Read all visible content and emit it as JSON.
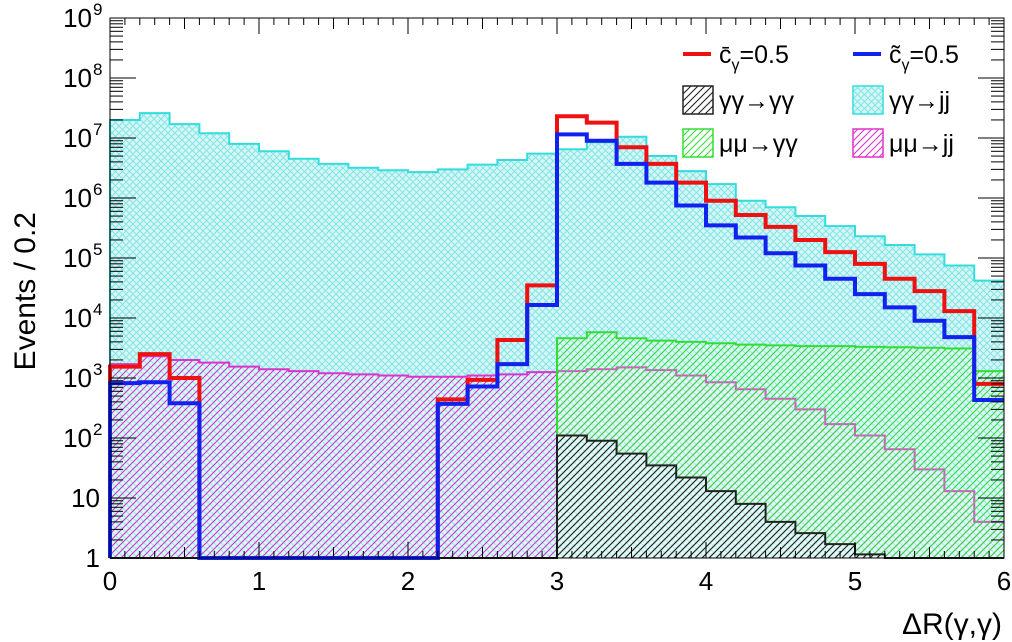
{
  "chart_data": {
    "type": "histogram",
    "xlabel": "ΔR(γ,γ)",
    "ylabel": "Events / 0.2",
    "xlim": [
      0,
      6
    ],
    "ylim": [
      1,
      1000000000
    ],
    "yscale": "log",
    "bin_width": 0.2,
    "legend_position": "top-right",
    "x_ticks": [
      "0",
      "1",
      "2",
      "3",
      "4",
      "5",
      "6"
    ],
    "y_ticks": [
      {
        "value": 1,
        "label": "1"
      },
      {
        "value": 10,
        "label": "10"
      },
      {
        "value": 100,
        "label": "10",
        "sup": "2"
      },
      {
        "value": 1000,
        "label": "10",
        "sup": "3"
      },
      {
        "value": 10000,
        "label": "10",
        "sup": "4"
      },
      {
        "value": 100000,
        "label": "10",
        "sup": "5"
      },
      {
        "value": 1000000,
        "label": "10",
        "sup": "6"
      },
      {
        "value": 10000000,
        "label": "10",
        "sup": "7"
      },
      {
        "value": 100000000,
        "label": "10",
        "sup": "8"
      },
      {
        "value": 1000000000,
        "label": "10",
        "sup": "9"
      }
    ],
    "series": [
      {
        "name": "γγ→jj",
        "key": "yyjj",
        "style": "fill",
        "color": "#33dddd",
        "values": [
          20000000,
          26000000,
          17000000,
          12000000,
          8000000,
          6000000,
          4500000,
          3700000,
          3200000,
          2900000,
          2700000,
          3000000,
          3600000,
          4300000,
          5500000,
          6500000,
          8500000,
          10500000,
          5000000,
          2800000,
          1700000,
          900000,
          700000,
          500000,
          340000,
          230000,
          165000,
          115000,
          75000,
          42000
        ]
      },
      {
        "name": "μμ→jj",
        "key": "mmjj",
        "style": "hatch",
        "color": "#dd33cc",
        "values": [
          1700,
          2300,
          2000,
          1800,
          1550,
          1400,
          1300,
          1200,
          1150,
          1100,
          1050,
          1050,
          1100,
          1150,
          1250,
          1300,
          1400,
          1500,
          1350,
          1100,
          850,
          650,
          450,
          300,
          170,
          110,
          65,
          30,
          13,
          4
        ]
      },
      {
        "name": "μμ→γγ",
        "key": "mmyy",
        "style": "hatch",
        "color": "#33dd33",
        "values": [
          1,
          1,
          1,
          1,
          1,
          1,
          1,
          1,
          1,
          1,
          1,
          1,
          1,
          1,
          1,
          4600,
          5800,
          4600,
          4200,
          4000,
          3800,
          3600,
          3500,
          3400,
          3400,
          3300,
          3250,
          3200,
          3100,
          1300
        ]
      },
      {
        "name": "γγ→γγ",
        "key": "yyyy",
        "style": "hatch",
        "color": "#222222",
        "values": [
          1,
          1,
          1,
          1,
          1,
          1,
          1,
          1,
          1,
          1,
          1,
          1,
          1,
          1,
          1,
          110,
          90,
          55,
          35,
          22,
          13,
          8,
          4,
          2.6,
          1.7,
          1.15,
          1,
          1,
          1,
          1
        ]
      },
      {
        "name": "c̄γ=0.5",
        "key": "cbar",
        "style": "line",
        "color": "#ee1111",
        "values": [
          1550,
          2500,
          1000,
          1,
          1,
          1,
          1,
          1,
          1,
          1,
          1,
          440,
          930,
          4300,
          35000,
          23000000,
          18000000,
          7000000,
          3700000,
          1800000,
          900000,
          520000,
          330000,
          200000,
          125000,
          80000,
          45000,
          28000,
          13000,
          800
        ]
      },
      {
        "name": "c̃γ=0.5",
        "key": "ctilde",
        "style": "line",
        "color": "#1122ee",
        "values": [
          820,
          850,
          380,
          1,
          1,
          1,
          1,
          1,
          1,
          1,
          1,
          370,
          720,
          1700,
          16500,
          11500000,
          9000000,
          3700000,
          1800000,
          750000,
          350000,
          220000,
          120000,
          75000,
          45000,
          25000,
          15000,
          9000,
          4800,
          430
        ]
      }
    ]
  },
  "legend": {
    "items": [
      {
        "name": "c̄γ=0.5",
        "series": "cbar",
        "main": "c̄",
        "sub": "γ",
        "tail": "=0.5"
      },
      {
        "name": "c̃γ=0.5",
        "series": "ctilde",
        "main": "c̃",
        "sub": "γ",
        "tail": "=0.5"
      },
      {
        "name": "γγ→γγ",
        "series": "yyyy",
        "main": "γγ→γγ"
      },
      {
        "name": "γγ→jj",
        "series": "yyjj",
        "main": "γγ→jj"
      },
      {
        "name": "μμ→γγ",
        "series": "mmyy",
        "main": "μμ→γγ"
      },
      {
        "name": "μμ→jj",
        "series": "mmjj",
        "main": "μμ→jj"
      }
    ]
  }
}
